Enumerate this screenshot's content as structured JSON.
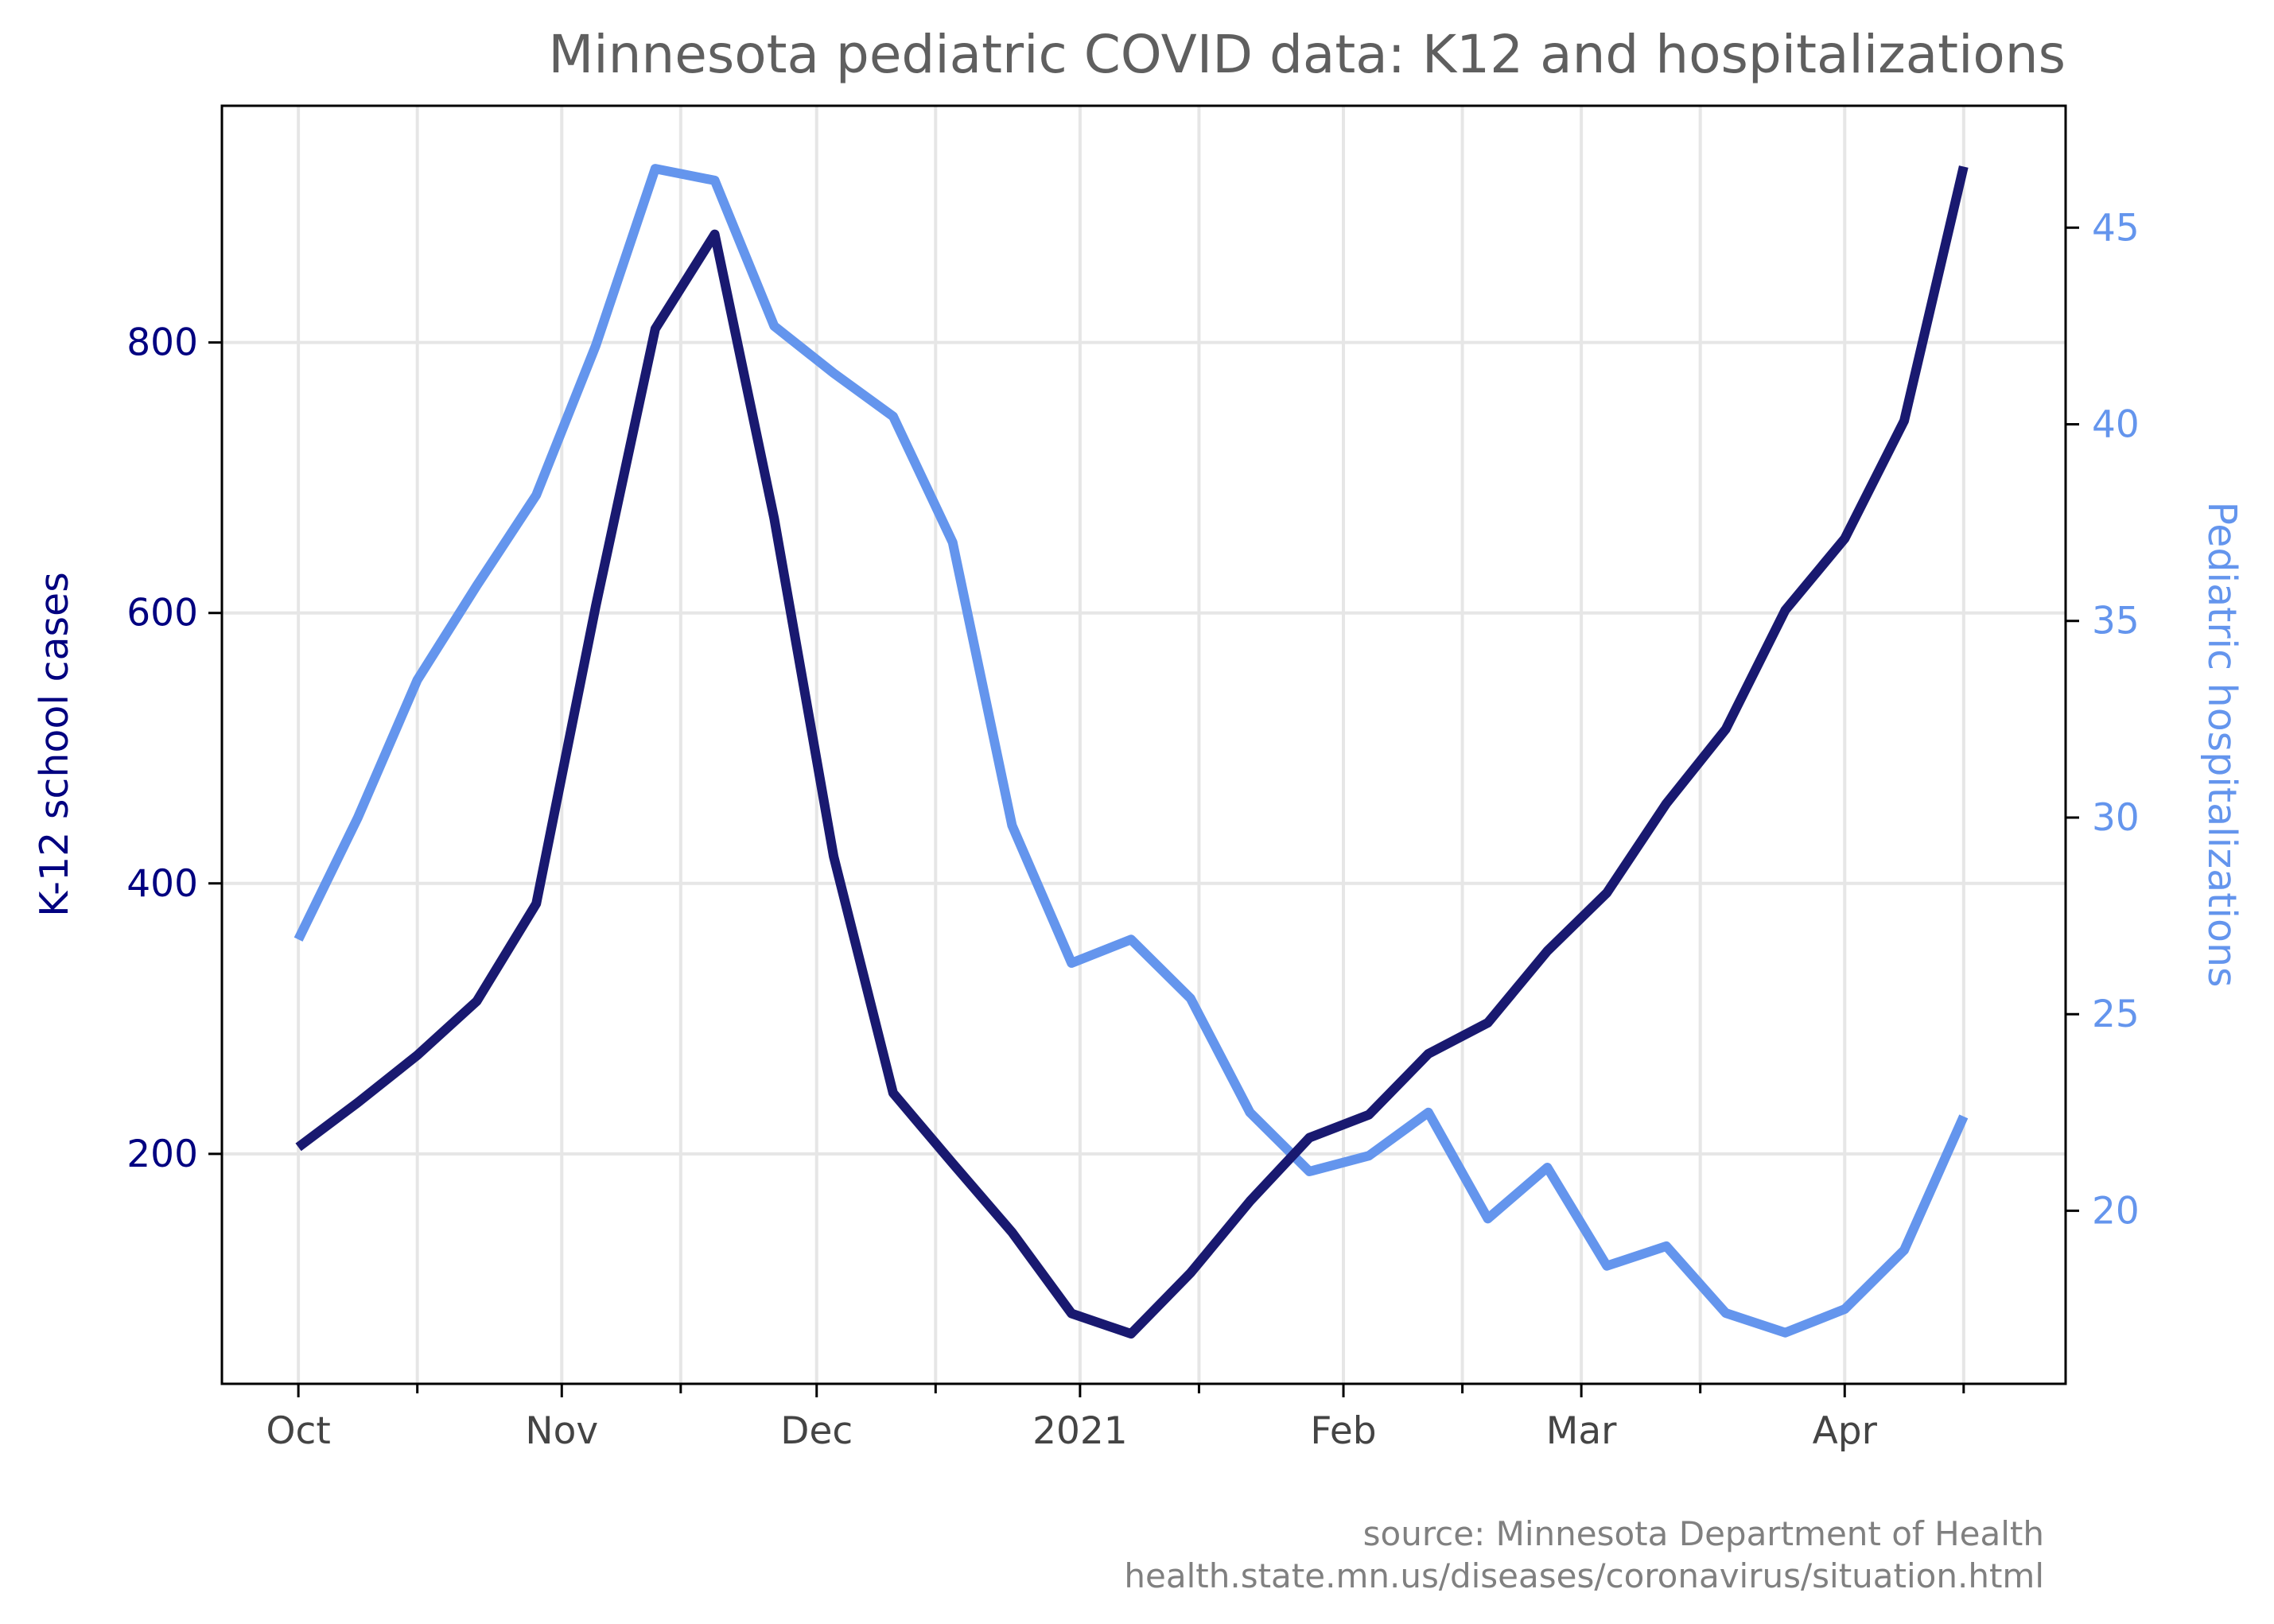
{
  "chart_data": {
    "type": "line",
    "title": "Minnesota pediatric COVID data: K12 and hospitalizations",
    "x_tick_labels": [
      "Oct",
      "Nov",
      "Dec",
      "2021",
      "Feb",
      "Mar",
      "Apr"
    ],
    "x_tick_dates": [
      "2020-10-01",
      "2020-11-01",
      "2020-12-01",
      "2021-01-01",
      "2021-02-01",
      "2021-03-01",
      "2021-04-01"
    ],
    "x_minor_tick_dates": [
      "2020-10-15",
      "2020-11-15",
      "2020-12-15",
      "2021-01-15",
      "2021-02-15",
      "2021-03-15",
      "2021-04-15"
    ],
    "x_range": [
      "2020-09-22",
      "2021-04-27"
    ],
    "dates": [
      "2020-10-01",
      "2020-10-08",
      "2020-10-15",
      "2020-10-22",
      "2020-10-29",
      "2020-11-05",
      "2020-11-12",
      "2020-11-19",
      "2020-11-26",
      "2020-12-03",
      "2020-12-10",
      "2020-12-17",
      "2020-12-24",
      "2020-12-31",
      "2021-01-07",
      "2021-01-14",
      "2021-01-21",
      "2021-01-28",
      "2021-02-04",
      "2021-02-11",
      "2021-02-18",
      "2021-02-25",
      "2021-03-04",
      "2021-03-11",
      "2021-03-18",
      "2021-03-25",
      "2021-04-01",
      "2021-04-08",
      "2021-04-15"
    ],
    "series": [
      {
        "name": "",
        "axis": "left",
        "color": "#191970",
        "values": [
          205,
          238,
          273,
          313,
          385,
          605,
          810,
          880,
          670,
          420,
          245,
          193,
          142,
          82,
          67,
          112,
          165,
          212,
          229,
          274,
          297,
          350,
          393,
          459,
          514,
          602,
          655,
          742,
          930
        ]
      },
      {
        "name": "",
        "axis": "right",
        "color": "#6495ed",
        "values": [
          26.9,
          30.0,
          33.5,
          35.9,
          38.2,
          42.0,
          46.5,
          46.2,
          42.5,
          41.3,
          40.2,
          37.0,
          29.8,
          26.3,
          26.9,
          25.4,
          22.5,
          21.0,
          21.4,
          22.5,
          19.8,
          21.1,
          18.6,
          19.1,
          17.4,
          16.9,
          17.5,
          19.0,
          22.4
        ]
      }
    ],
    "y_left": {
      "label": "K-12 school cases",
      "ticks": [
        200,
        400,
        600,
        800
      ],
      "range": [
        30,
        975
      ]
    },
    "y_right": {
      "label": "Pediatric hospitalizations",
      "ticks": [
        20,
        25,
        30,
        35,
        40,
        45
      ],
      "range": [
        15.6,
        48.1
      ]
    },
    "grid": true,
    "legend": "none",
    "source": [
      "source: Minnesota Department of Health",
      "health.state.mn.us/diseases/coronavirus/situation.html"
    ]
  }
}
